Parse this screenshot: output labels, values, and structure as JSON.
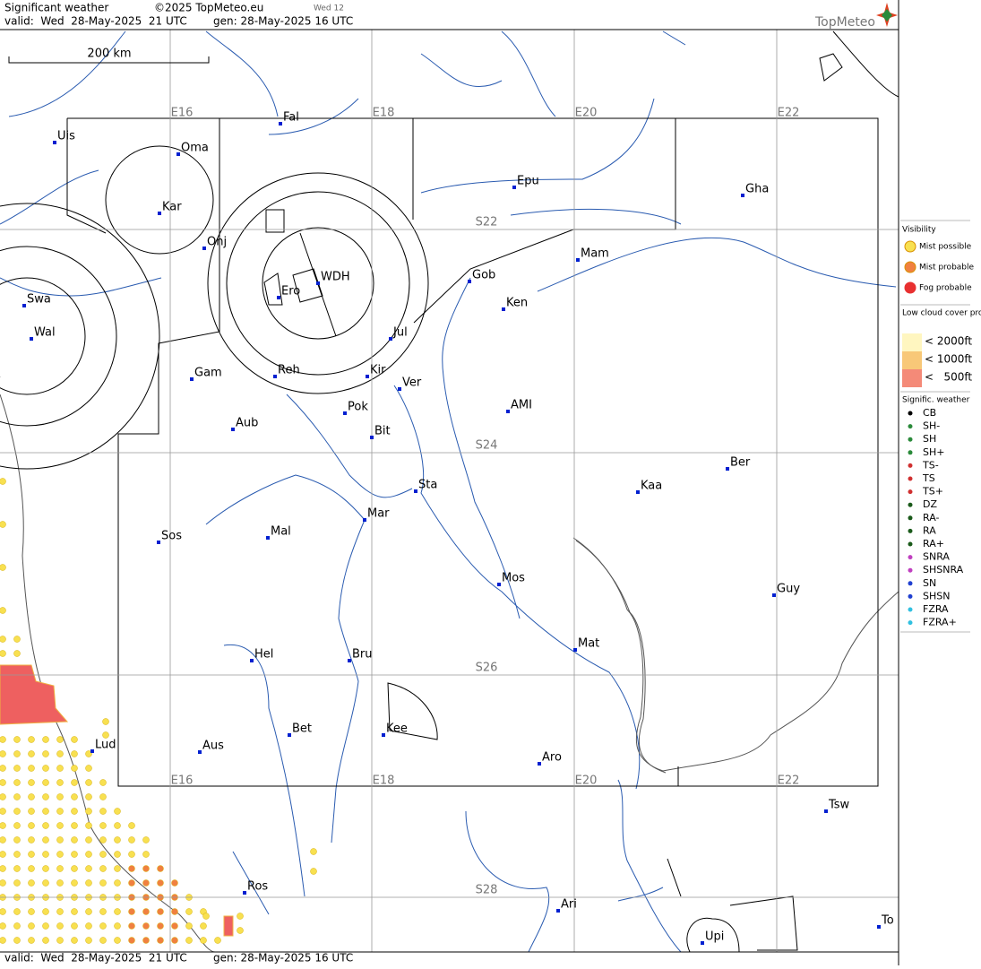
{
  "header": {
    "title": "Significant weather",
    "copyright": "©2025 TopMeteo.eu",
    "badge": "Wed 12",
    "logo": "TopMeteo",
    "valid": "valid:  Wed  28-May-2025  21 UTC",
    "generated": "gen: 28-May-2025 16 UTC"
  },
  "footer": {
    "valid": "valid:  Wed  28-May-2025  21 UTC",
    "generated": "gen: 28-May-2025 16 UTC"
  },
  "scale": "200 km",
  "grid": {
    "longitudes": [
      "E16",
      "E18",
      "E20",
      "E22"
    ],
    "latitudes": [
      "S22",
      "S24",
      "S26",
      "S28"
    ]
  },
  "places": [
    "Uis",
    "Fal",
    "Oma",
    "Kar",
    "Onj",
    "Swa",
    "Wal",
    "WDH",
    "Ero",
    "Gob",
    "Mam",
    "Epu",
    "Gha",
    "Ken",
    "Jul",
    "Gam",
    "Reh",
    "Kir",
    "Ver",
    "AMI",
    "Pok",
    "Bit",
    "Aub",
    "Ber",
    "Kaa",
    "Sta",
    "Mar",
    "Sos",
    "Mal",
    "Mos",
    "Guy",
    "Mat",
    "Hel",
    "Bru",
    "Bet",
    "Kee",
    "Lud",
    "Aus",
    "Aro",
    "Tsw",
    "Ros",
    "Ari",
    "Upi",
    "To"
  ],
  "legend": {
    "visibility": {
      "title": "Visibility",
      "items": [
        "Mist possible",
        "Mist probable",
        "Fog probable"
      ]
    },
    "low_cloud": {
      "title": "Low cloud cover probable",
      "items": [
        "< 2000ft",
        "< 1000ft",
        "<   500ft"
      ]
    },
    "weather": {
      "title": "Signific. weather",
      "items": [
        "CB",
        "SH-",
        "SH",
        "SH+",
        "TS-",
        "TS",
        "TS+",
        "DZ",
        "RA-",
        "RA",
        "RA+",
        "SNRA",
        "SHSNRA",
        "SN",
        "SHSN",
        "FZRA",
        "FZRA+"
      ]
    }
  }
}
